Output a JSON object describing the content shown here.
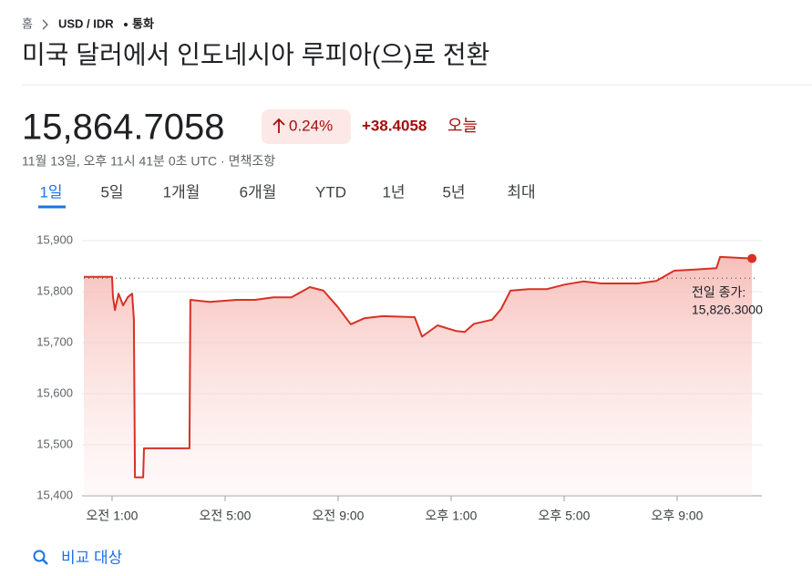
{
  "breadcrumb": [
    "홈",
    "USD / IDR",
    "통화"
  ],
  "title": "미국 달러에서 인도네시아 루피아(으)로 전환",
  "price": "15,864.7058",
  "change_percent": "0.24%",
  "change": "+38.4058",
  "change_period": "오늘",
  "timestamp": "11월 13일, 오후 11시 41분 0초 UTC · 면책조항",
  "tabs": [
    "1일",
    "5일",
    "1개월",
    "6개월",
    "YTD",
    "1년",
    "5년",
    "최대"
  ],
  "compare": "비교 대상",
  "chart_data": {
    "type": "line",
    "x": [
      0,
      1,
      1.03,
      1.1,
      1.23,
      1.39,
      1.55,
      1.71,
      1.77,
      1.81,
      2.1,
      2.13,
      3.74,
      3.77,
      4.45,
      5.42,
      6.06,
      6.71,
      7.35,
      8,
      8.48,
      8.97,
      9.45,
      9.94,
      10.58,
      11.71,
      11.97,
      12.52,
      13.16,
      13.48,
      13.81,
      14.45,
      14.77,
      15.1,
      15.74,
      16.39,
      17.03,
      17.68,
      18.32,
      19.61,
      20.26,
      20.9,
      21.55,
      22.39,
      22.52,
      23.65
    ],
    "series": [
      {
        "color": "#d93025",
        "values": [
          15829,
          15829,
          15791,
          15764,
          15796,
          15773,
          15789,
          15796,
          15746,
          15436,
          15436,
          15493,
          15493,
          15784,
          15780,
          15784,
          15784,
          15789,
          15789,
          15809,
          15802,
          15771,
          15736,
          15748,
          15752,
          15750,
          15712,
          15734,
          15723,
          15721,
          15737,
          15745,
          15766,
          15802,
          15805,
          15805,
          15814,
          15820,
          15816,
          15816,
          15821,
          15841,
          15843,
          15846,
          15868,
          15865
        ]
      }
    ],
    "xlim": [
      0,
      24
    ],
    "xticks": [
      {
        "value": 1,
        "label": "오전 1:00"
      },
      {
        "value": 5,
        "label": "오전 5:00"
      },
      {
        "value": 9,
        "label": "오전 9:00"
      },
      {
        "value": 13,
        "label": "오후 1:00"
      },
      {
        "value": 17,
        "label": "오후 5:00"
      },
      {
        "value": 21,
        "label": "오후 9:00"
      }
    ],
    "ylim": [
      15400,
      15900
    ],
    "yticks": [
      {
        "value": 15400,
        "label": "15,400"
      },
      {
        "value": 15500,
        "label": "15,500"
      },
      {
        "value": 15600,
        "label": "15,600"
      },
      {
        "value": 15700,
        "label": "15,700"
      },
      {
        "value": 15800,
        "label": "15,800"
      },
      {
        "value": 15900,
        "label": "15,900"
      }
    ],
    "grid": true,
    "reference_line": {
      "name": "전일 종가:",
      "value": 15826.3,
      "value_label": "15,826.3000"
    }
  }
}
